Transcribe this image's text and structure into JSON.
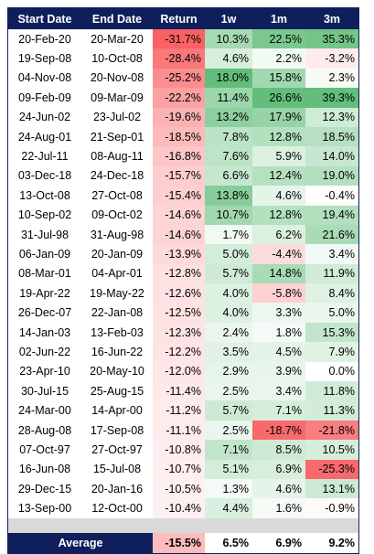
{
  "headers": [
    "Start Date",
    "End Date",
    "Return",
    "1w",
    "1m",
    "3m"
  ],
  "rows": [
    [
      "20-Feb-20",
      "20-Mar-20",
      "-31.7%",
      "10.3%",
      "22.5%",
      "35.3%"
    ],
    [
      "19-Sep-08",
      "10-Oct-08",
      "-28.4%",
      "4.6%",
      "2.2%",
      "-3.2%"
    ],
    [
      "04-Nov-08",
      "20-Nov-08",
      "-25.2%",
      "18.0%",
      "15.8%",
      "2.3%"
    ],
    [
      "09-Feb-09",
      "09-Mar-09",
      "-22.2%",
      "11.4%",
      "26.6%",
      "39.3%"
    ],
    [
      "24-Jun-02",
      "23-Jul-02",
      "-19.6%",
      "13.2%",
      "17.9%",
      "12.3%"
    ],
    [
      "24-Aug-01",
      "21-Sep-01",
      "-18.5%",
      "7.8%",
      "12.8%",
      "18.5%"
    ],
    [
      "22-Jul-11",
      "08-Aug-11",
      "-16.8%",
      "7.6%",
      "5.9%",
      "14.0%"
    ],
    [
      "03-Dec-18",
      "24-Dec-18",
      "-15.7%",
      "6.6%",
      "12.4%",
      "19.0%"
    ],
    [
      "13-Oct-08",
      "27-Oct-08",
      "-15.4%",
      "13.8%",
      "4.6%",
      "-0.4%"
    ],
    [
      "10-Sep-02",
      "09-Oct-02",
      "-14.6%",
      "10.7%",
      "12.8%",
      "19.4%"
    ],
    [
      "31-Jul-98",
      "31-Aug-98",
      "-14.6%",
      "1.7%",
      "6.2%",
      "21.6%"
    ],
    [
      "06-Jan-09",
      "20-Jan-09",
      "-13.9%",
      "5.0%",
      "-4.4%",
      "3.4%"
    ],
    [
      "08-Mar-01",
      "04-Apr-01",
      "-12.8%",
      "5.7%",
      "14.8%",
      "11.9%"
    ],
    [
      "19-Apr-22",
      "19-May-22",
      "-12.6%",
      "4.0%",
      "-5.8%",
      "8.4%"
    ],
    [
      "26-Dec-07",
      "22-Jan-08",
      "-12.5%",
      "4.0%",
      "3.3%",
      "5.0%"
    ],
    [
      "14-Jan-03",
      "13-Feb-03",
      "-12.3%",
      "2.4%",
      "1.8%",
      "15.3%"
    ],
    [
      "02-Jun-22",
      "16-Jun-22",
      "-12.2%",
      "3.5%",
      "4.5%",
      "7.9%"
    ],
    [
      "23-Apr-10",
      "20-May-10",
      "-12.0%",
      "2.9%",
      "3.9%",
      "0.0%"
    ],
    [
      "30-Jul-15",
      "25-Aug-15",
      "-11.4%",
      "2.5%",
      "3.4%",
      "11.8%"
    ],
    [
      "24-Mar-00",
      "14-Apr-00",
      "-11.2%",
      "5.7%",
      "7.1%",
      "11.3%"
    ],
    [
      "28-Aug-08",
      "17-Sep-08",
      "-11.1%",
      "2.5%",
      "-18.7%",
      "-21.8%"
    ],
    [
      "07-Oct-97",
      "27-Oct-97",
      "-10.8%",
      "7.1%",
      "8.5%",
      "10.5%"
    ],
    [
      "16-Jun-08",
      "15-Jul-08",
      "-10.7%",
      "5.1%",
      "6.9%",
      "-25.3%"
    ],
    [
      "29-Dec-15",
      "20-Jan-16",
      "-10.5%",
      "1.3%",
      "4.6%",
      "13.1%"
    ],
    [
      "13-Sep-00",
      "12-Oct-00",
      "-10.4%",
      "4.4%",
      "1.6%",
      "-0.9%"
    ]
  ],
  "average": {
    "label": "Average",
    "values": [
      "-15.5%",
      "6.5%",
      "6.9%",
      "9.2%"
    ]
  },
  "colors": {
    "header_bg": "#0f1f5c",
    "header_text": "#ffffff",
    "positive_max": "#63be7b",
    "negative_max": "#f8696b",
    "neutral": "#ffffff",
    "spacer": "#d9d9d9"
  }
}
